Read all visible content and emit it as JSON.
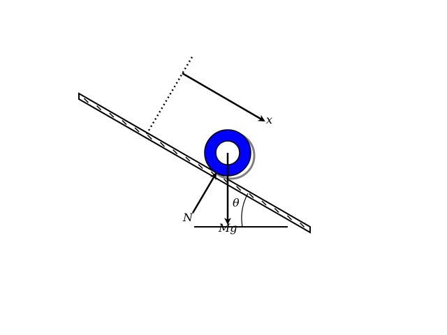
{
  "labels": {
    "x_axis": "x",
    "normal_force": "N",
    "weight": "Mg",
    "angle": "θ"
  },
  "colors": {
    "ring": "#0000ff",
    "shadow": "#808080",
    "line": "#000000",
    "background": "#ffffff"
  }
}
